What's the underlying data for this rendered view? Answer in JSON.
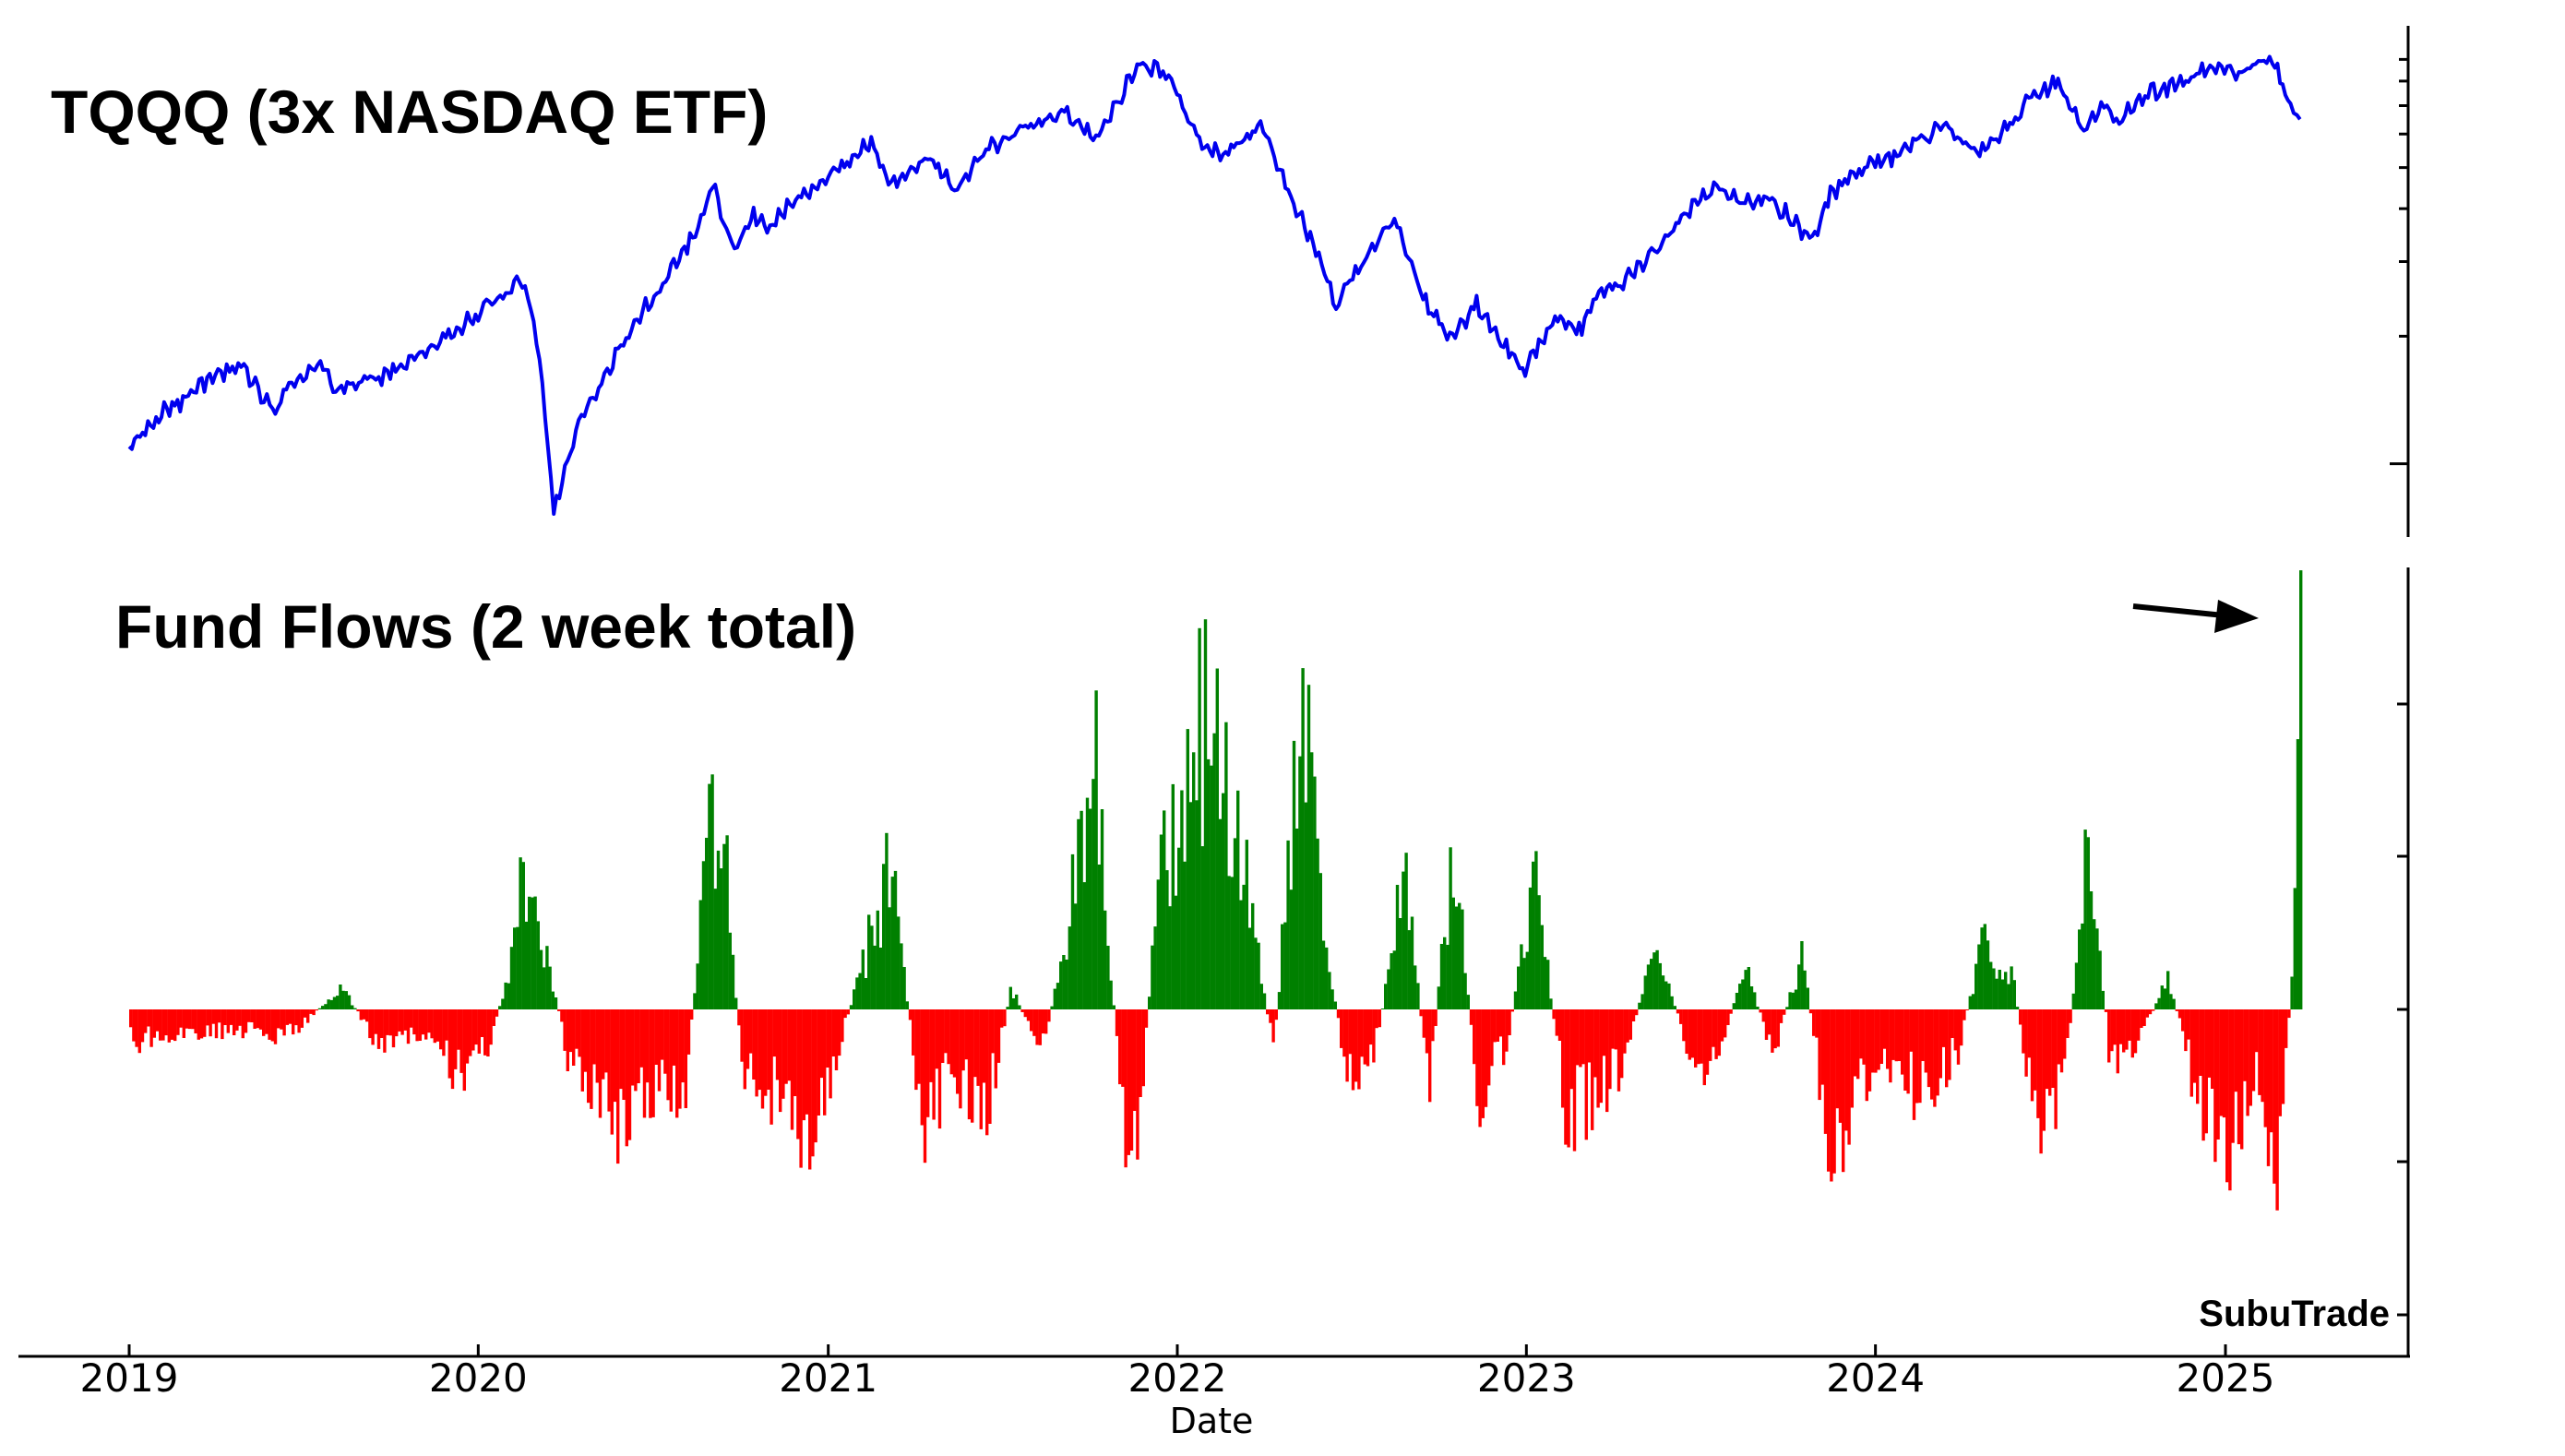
{
  "chart_data": [
    {
      "type": "line",
      "title": "TQQQ (3x NASDAQ ETF)",
      "yscale": "log",
      "color": "#0000ee",
      "x_range": [
        "2019-01-01",
        "2025-03-20"
      ],
      "series": [
        {
          "x": [
            "2019-01-01",
            "2019-02-01",
            "2019-03-01",
            "2019-04-01",
            "2019-05-01",
            "2019-05-31",
            "2019-06-20",
            "2019-07-20",
            "2019-08-05",
            "2019-09-01",
            "2019-10-01",
            "2019-11-01",
            "2019-12-01",
            "2020-01-01",
            "2020-02-19",
            "2020-03-05",
            "2020-03-20",
            "2020-04-15",
            "2020-05-15",
            "2020-06-15",
            "2020-07-15",
            "2020-08-15",
            "2020-09-02",
            "2020-09-25",
            "2020-10-15",
            "2020-11-01",
            "2020-12-01",
            "2021-01-01",
            "2021-02-15",
            "2021-03-08",
            "2021-04-15",
            "2021-05-13",
            "2021-06-15",
            "2021-07-15",
            "2021-08-15",
            "2021-09-05",
            "2021-10-05",
            "2021-11-01",
            "2021-11-20",
            "2021-12-20",
            "2022-01-27",
            "2022-02-15",
            "2022-03-29",
            "2022-05-20",
            "2022-06-16",
            "2022-07-15",
            "2022-08-16",
            "2022-09-15",
            "2022-10-13",
            "2022-11-10",
            "2022-12-28",
            "2023-01-31",
            "2023-02-28",
            "2023-03-15",
            "2023-04-15",
            "2023-05-15",
            "2023-06-15",
            "2023-07-19",
            "2023-08-15",
            "2023-09-15",
            "2023-10-27",
            "2023-11-15",
            "2023-12-15",
            "2024-01-15",
            "2024-02-15",
            "2024-03-15",
            "2024-04-19",
            "2024-05-15",
            "2024-06-15",
            "2024-07-10",
            "2024-08-06",
            "2024-08-30",
            "2024-09-06",
            "2024-10-15",
            "2024-11-15",
            "2024-12-16",
            "2025-01-15",
            "2025-02-19",
            "2025-03-10",
            "2025-03-20"
          ],
          "y": [
            10.6,
            13.1,
            14.2,
            16.3,
            16.8,
            13.2,
            15.6,
            17.3,
            14.9,
            15.8,
            16.2,
            18.4,
            20.1,
            22.7,
            27.4,
            17.8,
            7.8,
            12.4,
            16.7,
            21.7,
            27.9,
            35.0,
            45.3,
            31.5,
            38.5,
            36.0,
            43.5,
            46.7,
            58.0,
            45.5,
            53.0,
            44.5,
            55.0,
            60.5,
            64.0,
            67.5,
            58.8,
            72.5,
            88.0,
            84.0,
            56.5,
            53.4,
            63.0,
            34.0,
            23.5,
            31.0,
            38.0,
            24.5,
            19.6,
            23.8,
            16.5,
            22.0,
            21.0,
            24.8,
            27.2,
            32.0,
            38.5,
            45.0,
            41.5,
            42.0,
            33.5,
            43.0,
            50.0,
            52.5,
            58.0,
            63.0,
            53.5,
            62.0,
            74.0,
            80.0,
            61.5,
            71.5,
            63.0,
            75.0,
            79.0,
            87.0,
            83.0,
            91.0,
            70.0,
            65.0
          ]
        }
      ]
    },
    {
      "type": "bar",
      "title": "Fund Flows (2 week total)",
      "xlabel": "Date",
      "x_tick_labels": [
        "2019",
        "2020",
        "2021",
        "2022",
        "2023",
        "2024",
        "2025"
      ],
      "positive_color": "#008000",
      "negative_color": "#ff0000",
      "series": [
        {
          "x": [
            "2019-01-01",
            "2019-03-01",
            "2019-05-01",
            "2019-06-15",
            "2019-08-10",
            "2019-09-15",
            "2019-11-01",
            "2019-12-10",
            "2020-01-10",
            "2020-02-01",
            "2020-02-15",
            "2020-03-01",
            "2020-04-01",
            "2020-05-01",
            "2020-06-01",
            "2020-07-10",
            "2020-08-01",
            "2020-09-01",
            "2020-09-15",
            "2020-10-01",
            "2020-11-10",
            "2020-12-05",
            "2021-01-01",
            "2021-02-01",
            "2021-03-05",
            "2021-04-10",
            "2021-05-10",
            "2021-06-10",
            "2021-07-10",
            "2021-08-10",
            "2021-09-05",
            "2021-10-05",
            "2021-11-10",
            "2021-11-25",
            "2021-12-15",
            "2022-01-05",
            "2022-01-25",
            "2022-02-20",
            "2022-03-15",
            "2022-04-10",
            "2022-05-10",
            "2022-06-01",
            "2022-06-25",
            "2022-07-25",
            "2022-08-25",
            "2022-09-20",
            "2022-10-15",
            "2022-11-10",
            "2022-12-10",
            "2023-01-10",
            "2023-02-10",
            "2023-03-10",
            "2023-04-10",
            "2023-05-15",
            "2023-06-15",
            "2023-07-15",
            "2023-08-15",
            "2023-09-15",
            "2023-10-15",
            "2023-11-15",
            "2023-12-15",
            "2024-01-15",
            "2024-02-15",
            "2024-03-25",
            "2024-04-20",
            "2024-05-20",
            "2024-06-15",
            "2024-07-15",
            "2024-08-10",
            "2024-09-01",
            "2024-10-01",
            "2024-11-01",
            "2024-12-01",
            "2025-01-01",
            "2025-02-01",
            "2025-02-25",
            "2025-03-10",
            "2025-03-20"
          ],
          "y": [
            -0.3,
            -0.2,
            -0.2,
            -0.25,
            0.2,
            -0.3,
            -0.2,
            -0.6,
            -0.3,
            0.3,
            1.2,
            1.0,
            -0.4,
            -0.7,
            -1.1,
            -0.6,
            -0.9,
            2.1,
            1.2,
            -0.6,
            -0.8,
            -1.2,
            -0.6,
            0.3,
            1.3,
            -1.1,
            -0.5,
            -1.1,
            0.2,
            -0.4,
            0.6,
            2.5,
            -1.9,
            -0.5,
            1.5,
            1.6,
            2.6,
            2.0,
            1.0,
            -0.4,
            2.8,
            0.8,
            -0.6,
            -0.4,
            1.2,
            -0.7,
            1.5,
            -0.8,
            -0.3,
            1.2,
            -1.0,
            -0.8,
            -0.5,
            0.6,
            -0.3,
            -0.6,
            0.4,
            -0.4,
            0.5,
            -1.4,
            -0.7,
            -0.5,
            -0.8,
            -0.4,
            0.6,
            0.4,
            -1.0,
            -0.7,
            1.8,
            -0.5,
            -0.3,
            0.3,
            -0.8,
            -1.3,
            -0.6,
            -1.5,
            0.3,
            3.2
          ]
        }
      ]
    }
  ],
  "annotations": {
    "watermark": "SubuTrade"
  }
}
